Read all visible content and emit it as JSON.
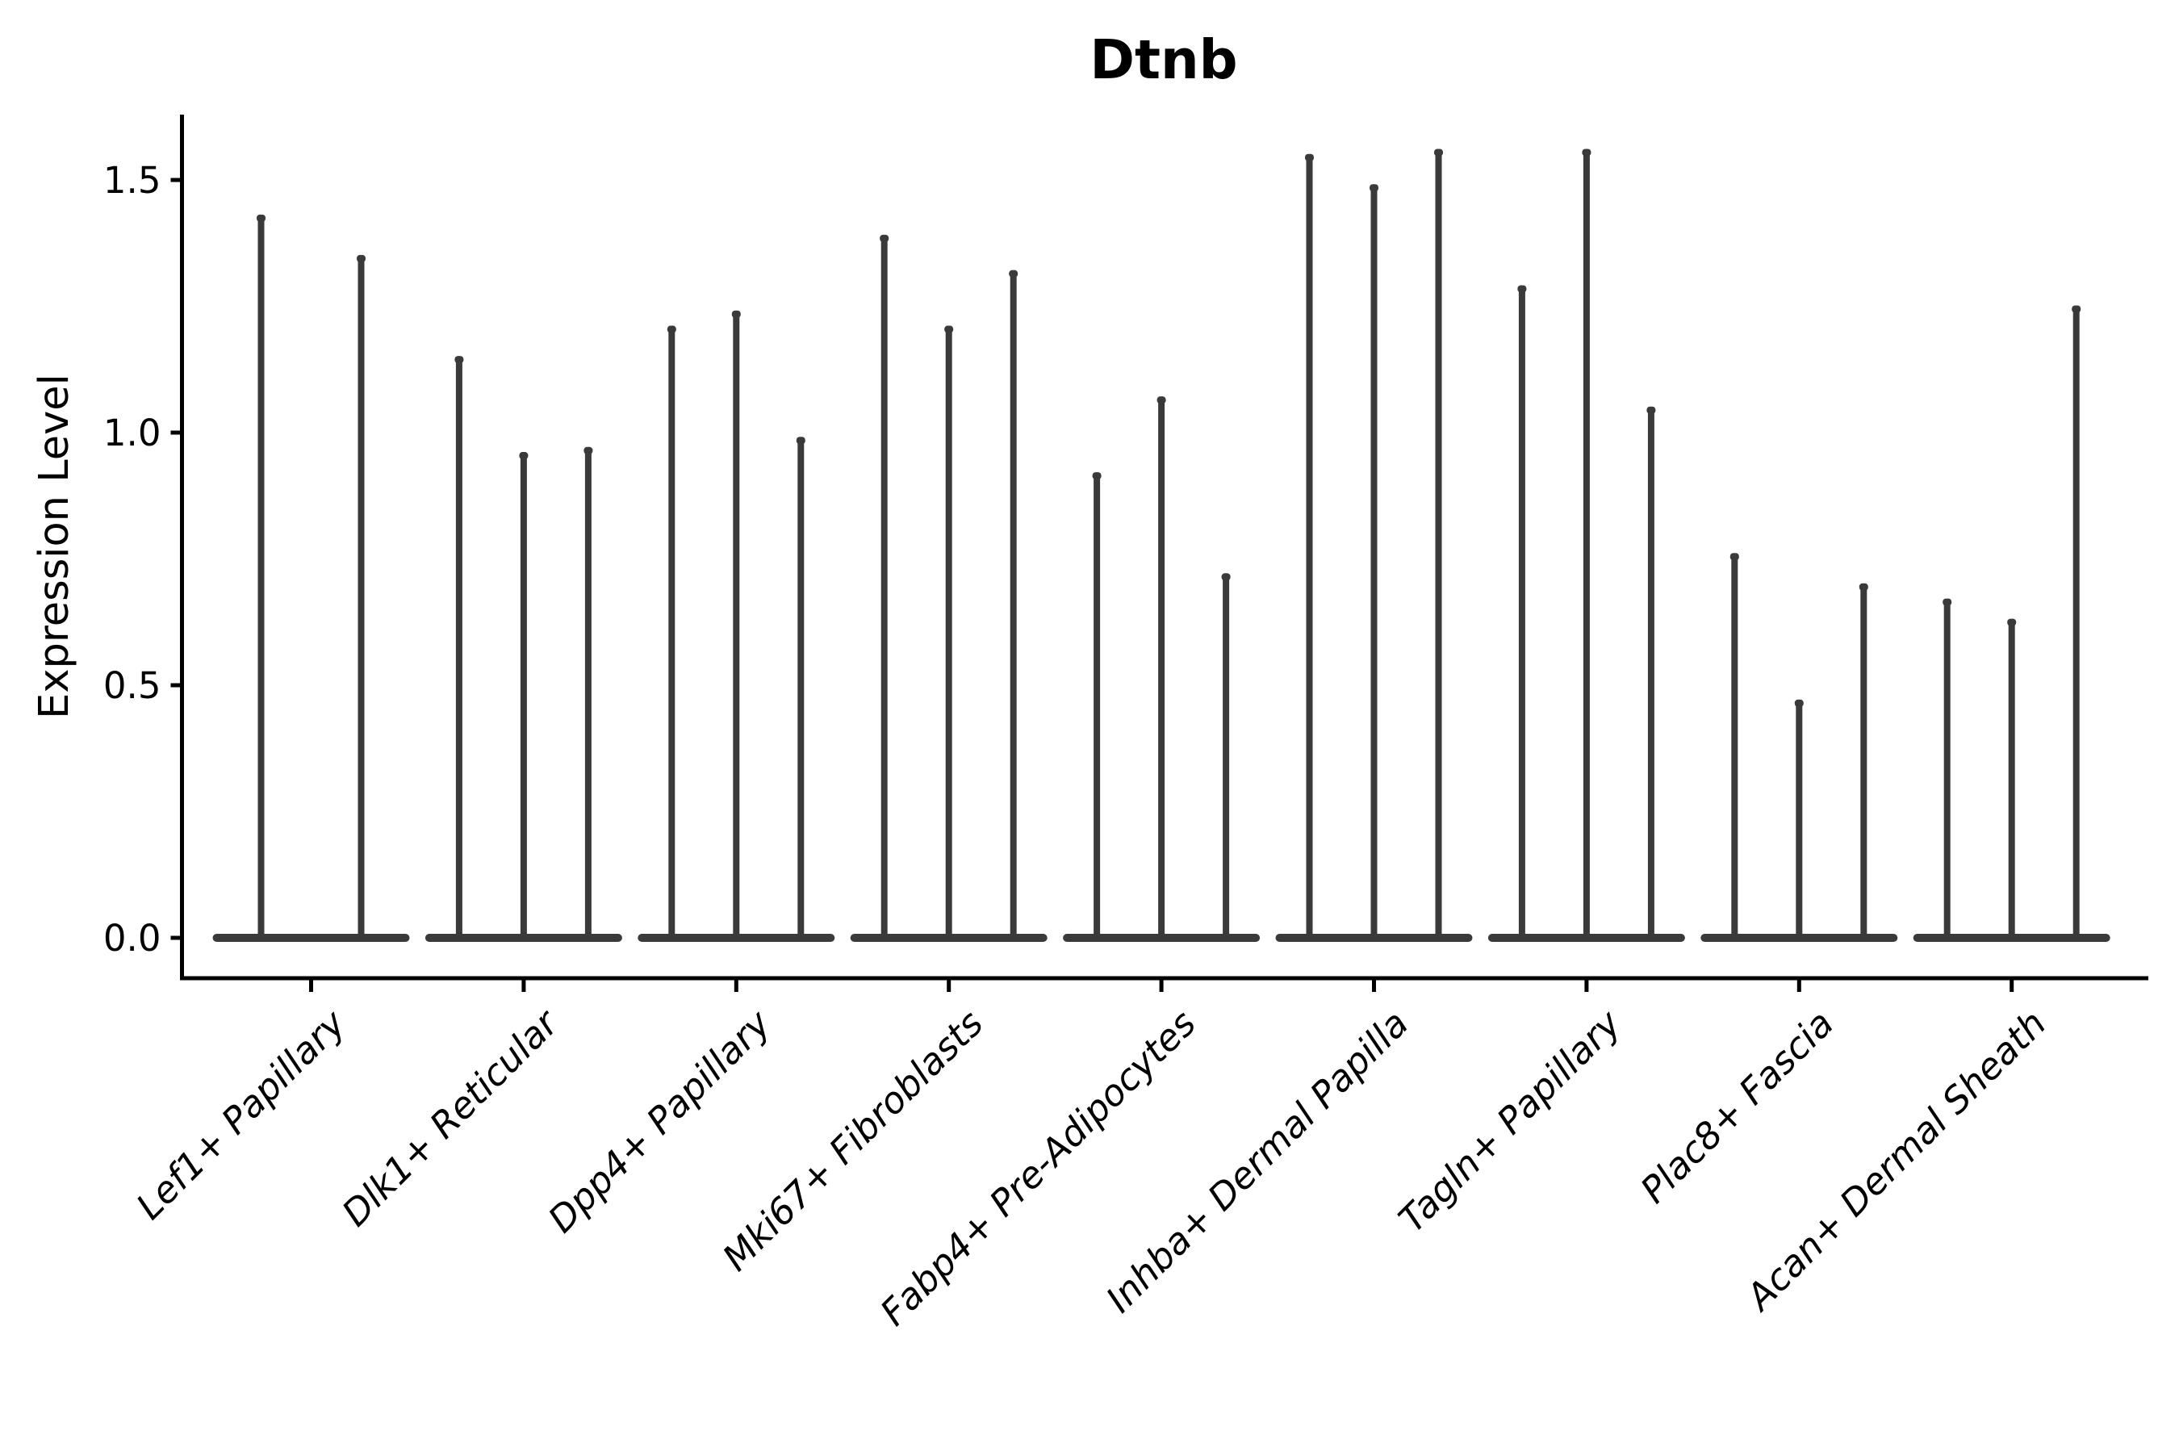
{
  "figure": {
    "background": "#ffffff"
  },
  "style": {
    "violin_color": "#3a3a3a",
    "axis_color": "#000000",
    "text_color": "#000000",
    "background": "#ffffff"
  },
  "chart_data": {
    "type": "violin",
    "title": "Dtnb",
    "title_weight": "bold",
    "xlabel": "",
    "ylabel": "Expression Level",
    "ylim": [
      -0.08,
      1.63
    ],
    "yticks": [
      0,
      0.5,
      1,
      1.5
    ],
    "ytick_labels": [
      "0.0",
      "0.5",
      "1.0",
      "1.5"
    ],
    "xtick_rotation_deg": 45,
    "grid": false,
    "legend": null,
    "shape_note": "Each violin is dense at 0 (wide flat base on the zero line) with a single thin spike rising to its maximum expression value.",
    "categories": [
      "Lef1+ Papillary",
      "Dlk1+ Reticular",
      "Dpp4+ Papillary",
      "Mki67+ Fibroblasts",
      "Fabp4+ Pre-Adipocytes",
      "Inhba+ Dermal Papilla",
      "Tagln+ Papillary",
      "Plac8+ Fascia",
      "Acan+ Dermal Sheath"
    ],
    "groups": [
      {
        "category": "Lef1+ Papillary",
        "violin_max_values": [
          1.43,
          1.35
        ]
      },
      {
        "category": "Dlk1+ Reticular",
        "violin_max_values": [
          1.15,
          0.96,
          0.97
        ]
      },
      {
        "category": "Dpp4+ Papillary",
        "violin_max_values": [
          1.21,
          1.24,
          0.99
        ]
      },
      {
        "category": "Mki67+ Fibroblasts",
        "violin_max_values": [
          1.39,
          1.21,
          1.32
        ]
      },
      {
        "category": "Fabp4+ Pre-Adipocytes",
        "violin_max_values": [
          0.92,
          1.07,
          0.72
        ]
      },
      {
        "category": "Inhba+ Dermal Papilla",
        "violin_max_values": [
          1.55,
          1.49,
          1.56
        ]
      },
      {
        "category": "Tagln+ Papillary",
        "violin_max_values": [
          1.29,
          1.56,
          1.05
        ]
      },
      {
        "category": "Plac8+ Fascia",
        "violin_max_values": [
          0.76,
          0.47,
          0.7
        ]
      },
      {
        "category": "Acan+ Dermal Sheath",
        "violin_max_values": [
          0.67,
          0.63,
          1.25
        ]
      }
    ]
  }
}
